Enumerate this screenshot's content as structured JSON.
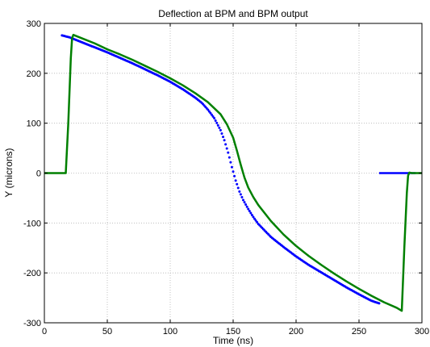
{
  "chart_data": {
    "type": "scatter",
    "title": "Deflection at BPM and BPM output",
    "xlabel": "Time (ns)",
    "ylabel": "Y (microns)",
    "xlim": [
      0,
      300
    ],
    "ylim": [
      -300,
      300
    ],
    "xticks": [
      0,
      50,
      100,
      150,
      200,
      250,
      300
    ],
    "yticks": [
      -300,
      -200,
      -100,
      0,
      100,
      200,
      300
    ],
    "grid": true,
    "legend": "none",
    "series": [
      {
        "color": "#0000ff",
        "style": "dots",
        "points": [
          [
            14,
            276
          ],
          [
            20,
            272
          ],
          [
            30,
            262
          ],
          [
            40,
            252
          ],
          [
            50,
            242
          ],
          [
            60,
            231
          ],
          [
            70,
            220
          ],
          [
            80,
            208
          ],
          [
            90,
            196
          ],
          [
            100,
            183
          ],
          [
            110,
            168
          ],
          [
            120,
            151
          ],
          [
            125,
            141
          ],
          [
            130,
            127
          ],
          [
            135,
            110
          ],
          [
            140,
            86
          ],
          [
            143,
            66
          ],
          [
            146,
            41
          ],
          [
            149,
            12
          ],
          [
            152,
            -15
          ],
          [
            155,
            -37
          ],
          [
            158,
            -54
          ],
          [
            162,
            -72
          ],
          [
            166,
            -88
          ],
          [
            170,
            -102
          ],
          [
            180,
            -128
          ],
          [
            190,
            -148
          ],
          [
            200,
            -167
          ],
          [
            210,
            -184
          ],
          [
            220,
            -199
          ],
          [
            230,
            -214
          ],
          [
            240,
            -229
          ],
          [
            250,
            -243
          ],
          [
            260,
            -256
          ],
          [
            266,
            -261
          ]
        ],
        "tail_points": [
          [
            266,
            0
          ],
          [
            275,
            0
          ],
          [
            285,
            0
          ],
          [
            295,
            0
          ]
        ]
      },
      {
        "color": "#008000",
        "style": "line",
        "points": [
          [
            0,
            0
          ],
          [
            17,
            0
          ],
          [
            19,
            100
          ],
          [
            21,
            230
          ],
          [
            22,
            270
          ],
          [
            23,
            277
          ],
          [
            30,
            270
          ],
          [
            40,
            260
          ],
          [
            50,
            248
          ],
          [
            60,
            238
          ],
          [
            70,
            227
          ],
          [
            80,
            215
          ],
          [
            90,
            203
          ],
          [
            100,
            190
          ],
          [
            110,
            176
          ],
          [
            120,
            160
          ],
          [
            130,
            142
          ],
          [
            140,
            118
          ],
          [
            145,
            98
          ],
          [
            150,
            71
          ],
          [
            153,
            45
          ],
          [
            156,
            17
          ],
          [
            159,
            -9
          ],
          [
            162,
            -29
          ],
          [
            166,
            -48
          ],
          [
            170,
            -64
          ],
          [
            180,
            -96
          ],
          [
            190,
            -123
          ],
          [
            200,
            -146
          ],
          [
            210,
            -166
          ],
          [
            220,
            -184
          ],
          [
            230,
            -201
          ],
          [
            240,
            -217
          ],
          [
            250,
            -232
          ],
          [
            260,
            -246
          ],
          [
            270,
            -259
          ],
          [
            280,
            -270
          ],
          [
            284,
            -276
          ],
          [
            286,
            -150
          ],
          [
            288,
            -40
          ],
          [
            289,
            -5
          ],
          [
            290,
            1
          ],
          [
            292,
            0
          ],
          [
            300,
            0
          ]
        ]
      }
    ]
  }
}
